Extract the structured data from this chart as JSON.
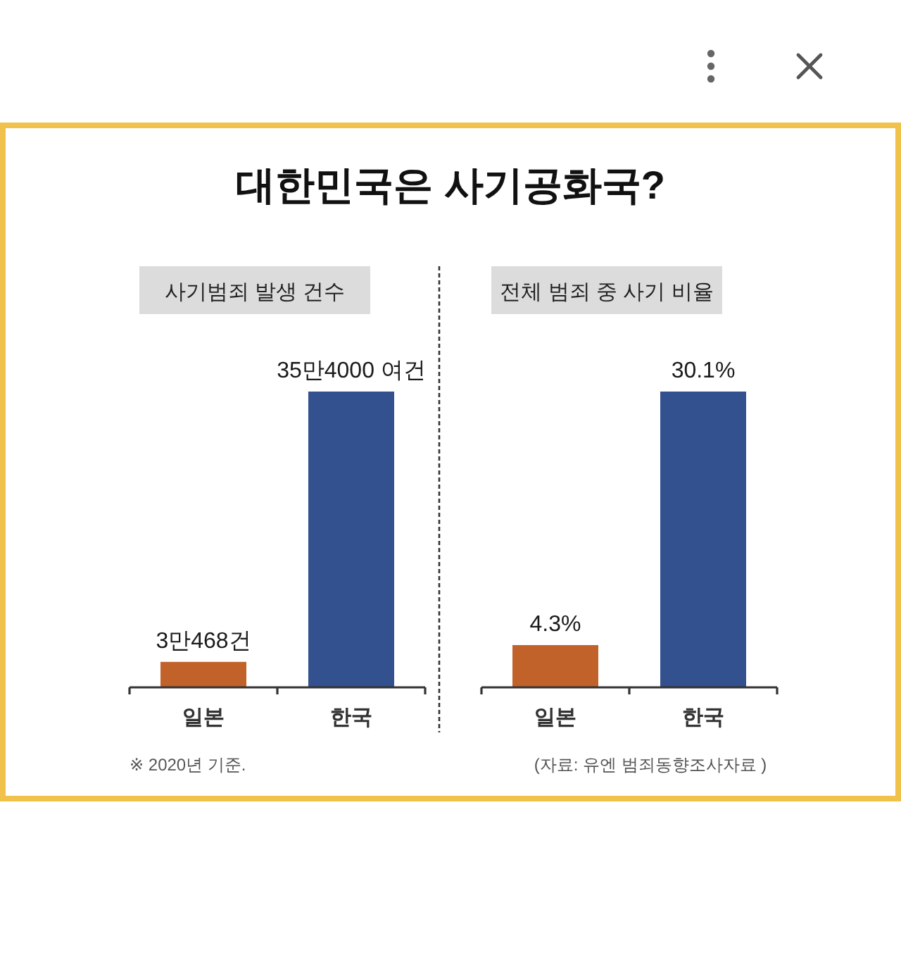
{
  "chart_data": [
    {
      "type": "bar",
      "title": "대한민국은 사기공화국?",
      "subtitle": "사기범죄 발생 건수",
      "categories": [
        "일본",
        "한국"
      ],
      "values": [
        3.0468,
        35.4
      ],
      "colors": [
        "#c1622b",
        "#33508f"
      ],
      "value_labels": [
        "3만468건",
        "35만4000 여건"
      ],
      "annotations": [
        "※ 2020년 기준."
      ]
    },
    {
      "type": "bar",
      "subtitle": "전체 범죄 중 사기 비율",
      "categories": [
        "일본",
        "한국"
      ],
      "values": [
        4.3,
        30.1
      ],
      "colors": [
        "#c1622b",
        "#33508f"
      ],
      "value_labels": [
        "4.3%",
        "30.1%"
      ],
      "annotations": [
        "(자료: 유엔 범죄동향조사자료 )"
      ]
    }
  ]
}
